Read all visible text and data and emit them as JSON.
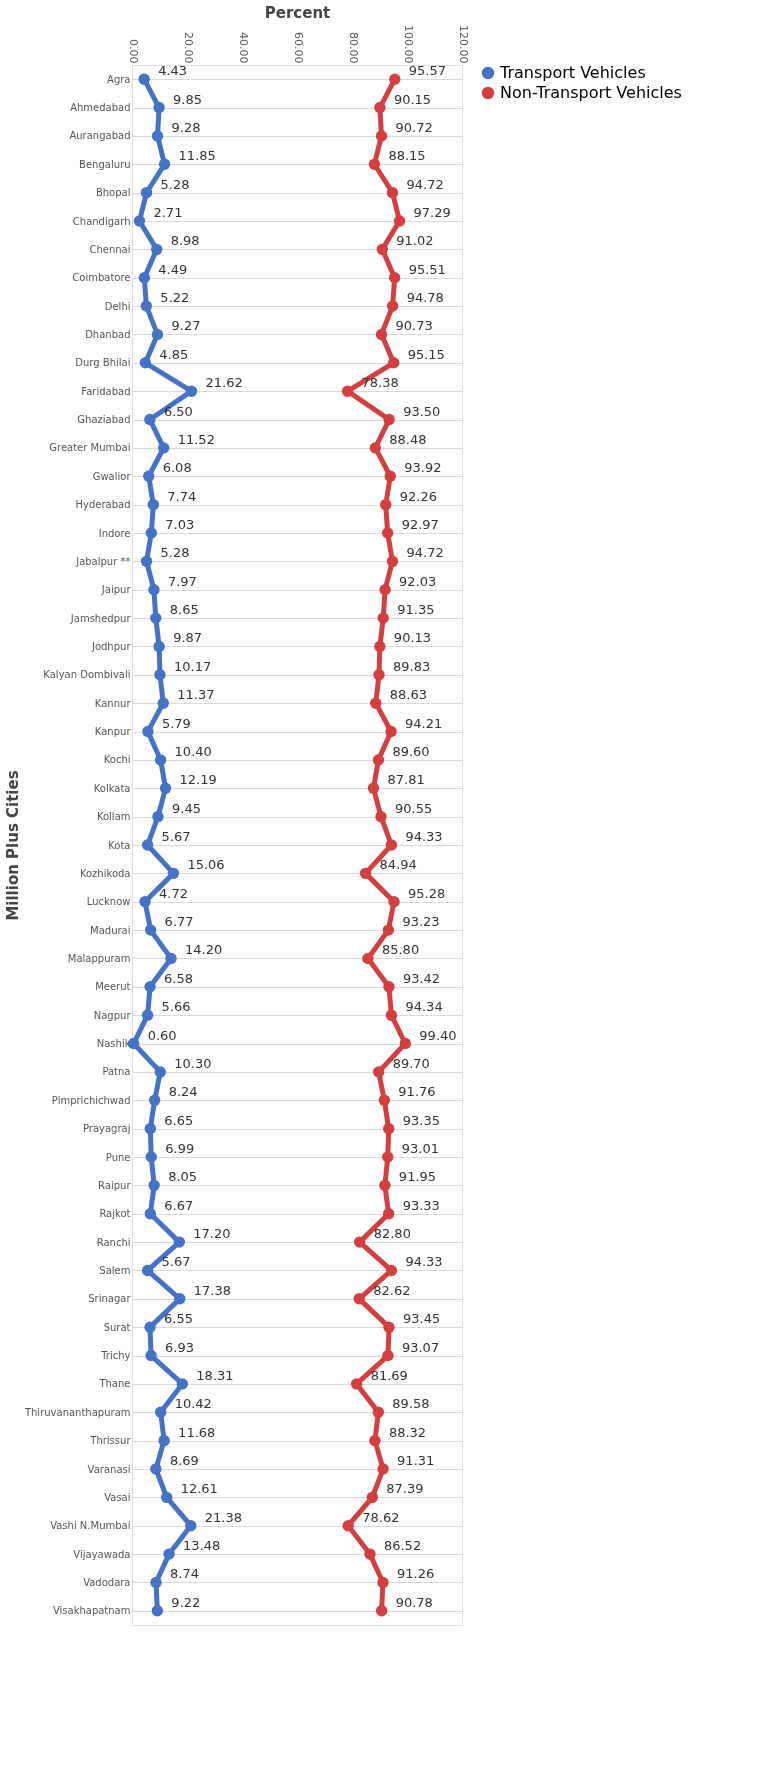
{
  "chart_data": {
    "type": "line",
    "orientation": "horizontal",
    "xlabel": "Percent",
    "ylabel": "Million Plus Cities",
    "categories": [
      "Agra",
      "Ahmedabad",
      "Aurangabad",
      "Bengaluru",
      "Bhopal",
      "Chandigarh",
      "Chennai",
      "Coimbatore",
      "Delhi",
      "Dhanbad",
      "Durg Bhilai",
      "Faridabad",
      "Ghaziabad",
      "Greater Mumbai",
      "Gwalior",
      "Hyderabad",
      "Indore",
      "Jabalpur **",
      "Jaipur",
      "Jamshedpur",
      "Jodhpur",
      "Kalyan Dombivali",
      "Kannur",
      "Kanpur",
      "Kochi",
      "Kolkata",
      "Kollam",
      "Kota",
      "Kozhikoda",
      "Lucknow",
      "Madurai",
      "Malappuram",
      "Meerut",
      "Nagpur",
      "Nashik",
      "Patna",
      "Pimprichichwad",
      "Prayagraj",
      "Pune",
      "Raipur",
      "Rajkot",
      "Ranchi",
      "Salem",
      "Srinagar",
      "Surat",
      "Trichy",
      "Thane",
      "Thiruvananthapuram",
      "Thrissur",
      "Varanasi",
      "Vasai",
      "Vashi N.Mumbai",
      "Vijayawada",
      "Vadodara",
      "Visakhapatnam"
    ],
    "series": [
      {
        "name": "Transport Vehicles",
        "color": "#4472c4",
        "values": [
          4.43,
          9.85,
          9.28,
          11.85,
          5.28,
          2.71,
          8.98,
          4.49,
          5.22,
          9.27,
          4.85,
          21.62,
          6.5,
          11.52,
          6.08,
          7.74,
          7.03,
          5.28,
          7.97,
          8.65,
          9.87,
          10.17,
          11.37,
          5.79,
          10.4,
          12.19,
          9.45,
          5.67,
          15.06,
          4.72,
          6.77,
          14.2,
          6.58,
          5.66,
          0.6,
          10.3,
          8.24,
          6.65,
          6.99,
          8.05,
          6.67,
          17.2,
          5.67,
          17.38,
          6.55,
          6.93,
          18.31,
          10.42,
          11.68,
          8.69,
          12.61,
          21.38,
          13.48,
          8.74,
          9.22
        ],
        "value_labels": [
          "4.43",
          "9.85",
          "9.28",
          "11.85",
          "5.28",
          "2.71",
          "8.98",
          "4.49",
          "5.22",
          "9.27",
          "4.85",
          "21.62",
          "6.50",
          "11.52",
          "6.08",
          "7.74",
          "7.03",
          "5.28",
          "7.97",
          "8.65",
          "9.87",
          "10.17",
          "11.37",
          "5.79",
          "10.40",
          "12.19",
          "9.45",
          "5.67",
          "15.06",
          "4.72",
          "6.77",
          "14.20",
          "6.58",
          "5.66",
          "0.60",
          "10.30",
          "8.24",
          "6.65",
          "6.99",
          "8.05",
          "6.67",
          "17.20",
          "5.67",
          "17.38",
          "6.55",
          "6.93",
          "18.31",
          "10.42",
          "11.68",
          "8.69",
          "12.61",
          "21.38",
          "13.48",
          "8.74",
          "9.22"
        ]
      },
      {
        "name": "Non-Transport Vehicles",
        "color": "#d33f3f",
        "values": [
          95.57,
          90.15,
          90.72,
          88.15,
          94.72,
          97.29,
          91.02,
          95.51,
          94.78,
          90.73,
          95.15,
          78.38,
          93.5,
          88.48,
          93.92,
          92.26,
          92.97,
          94.72,
          92.03,
          91.35,
          90.13,
          89.83,
          88.63,
          94.21,
          89.6,
          87.81,
          90.55,
          94.33,
          84.94,
          95.28,
          93.23,
          85.8,
          93.42,
          94.34,
          99.4,
          89.7,
          91.76,
          93.35,
          93.01,
          91.95,
          93.33,
          82.8,
          94.33,
          82.62,
          93.45,
          93.07,
          81.69,
          89.58,
          88.32,
          91.31,
          87.39,
          78.62,
          86.52,
          91.26,
          90.78
        ],
        "value_labels": [
          "95.57",
          "90.15",
          "90.72",
          "88.15",
          "94.72",
          "97.29",
          "91.02",
          "95.51",
          "94.78",
          "90.73",
          "95.15",
          "78.38",
          "93.50",
          "88.48",
          "93.92",
          "92.26",
          "92.97",
          "94.72",
          "92.03",
          "91.35",
          "90.13",
          "89.83",
          "88.63",
          "94.21",
          "89.60",
          "87.81",
          "90.55",
          "94.33",
          "84.94",
          "95.28",
          "93.23",
          "85.80",
          "93.42",
          "94.34",
          "99.40",
          "89.70",
          "91.76",
          "93.35",
          "93.01",
          "91.95",
          "93.33",
          "82.80",
          "94.33",
          "82.62",
          "93.45",
          "93.07",
          "81.69",
          "89.58",
          "88.32",
          "91.31",
          "87.39",
          "78.62",
          "86.52",
          "91.26",
          "90.78"
        ]
      }
    ],
    "xlim": [
      0,
      120
    ],
    "xticks": [
      {
        "value": 0,
        "label": "0.00"
      },
      {
        "value": 20,
        "label": "20.00"
      },
      {
        "value": 40,
        "label": "40.00"
      },
      {
        "value": 60,
        "label": "60.00"
      },
      {
        "value": 80,
        "label": "80.00"
      },
      {
        "value": 100,
        "label": "100.00"
      },
      {
        "value": 120,
        "label": "120.00"
      }
    ],
    "grid": "y",
    "legend": "right",
    "marker": "circle",
    "line_style": "solid"
  }
}
